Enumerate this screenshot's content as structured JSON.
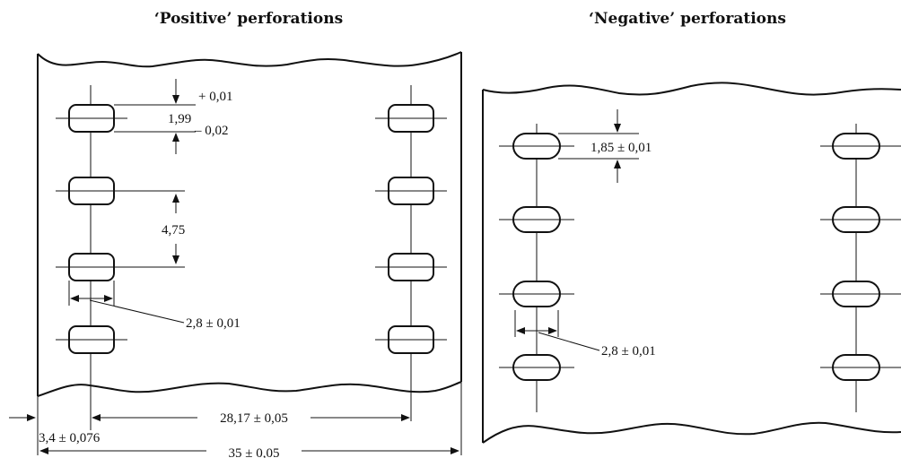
{
  "titles": {
    "positive": "‘Positive’ perforations",
    "negative": "‘Negative’ perforations"
  },
  "positive": {
    "tol_plus": "+ 0,01",
    "pitch_height": "1,99",
    "tol_minus": "– 0,02",
    "hole_pitch": "4,75",
    "hole_width": "2,8 ± 0,01",
    "hole_span": "28,17 ± 0,05",
    "edge_offset": "3,4 ± 0,076",
    "film_width": "35 ± 0,05"
  },
  "negative": {
    "hole_height": "1,85 ± 0,01",
    "hole_width": "2,8 ± 0,01"
  }
}
